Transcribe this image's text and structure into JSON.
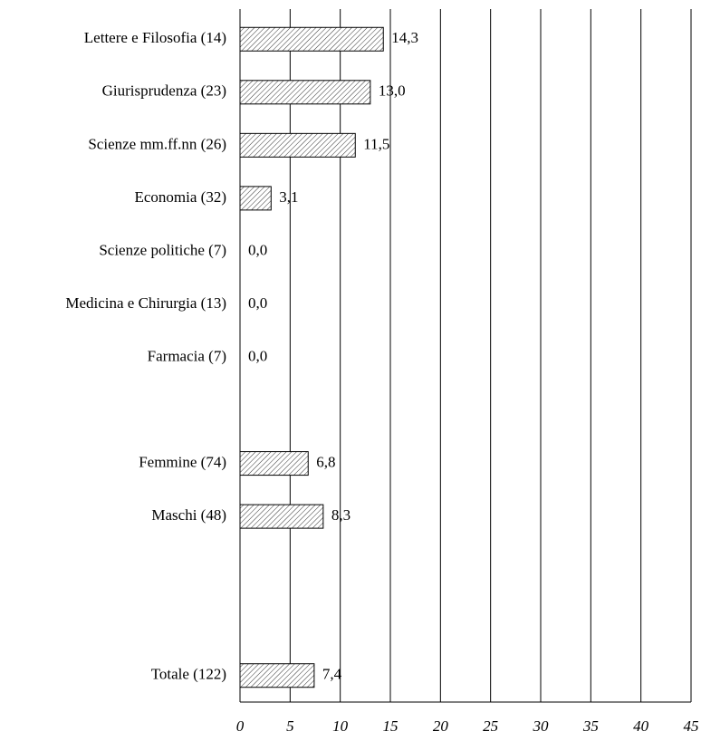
{
  "chart_data": {
    "type": "hbar",
    "categories": [
      "Lettere e Filosofia (14)",
      "Giurisprudenza (23)",
      "Scienze mm.ff.nn (26)",
      "Economia (32)",
      "Scienze politiche (7)",
      "Medicina e Chirurgia (13)",
      "Farmacia (7)",
      null,
      "Femmine (74)",
      "Maschi (48)",
      null,
      null,
      "Totale (122)"
    ],
    "values": [
      14.3,
      13.0,
      11.5,
      3.1,
      0.0,
      0.0,
      0.0,
      null,
      6.8,
      8.3,
      null,
      null,
      7.4
    ],
    "value_labels": [
      "14,3",
      "13,0",
      "11,5",
      "3,1",
      "0,0",
      "0,0",
      "0,0",
      null,
      "6,8",
      "8,3",
      null,
      null,
      "7,4"
    ],
    "xlim": [
      0,
      45
    ],
    "xticks": [
      0,
      5,
      10,
      15,
      20,
      25,
      30,
      35,
      40,
      45
    ],
    "grid": true,
    "color": "hatch"
  }
}
